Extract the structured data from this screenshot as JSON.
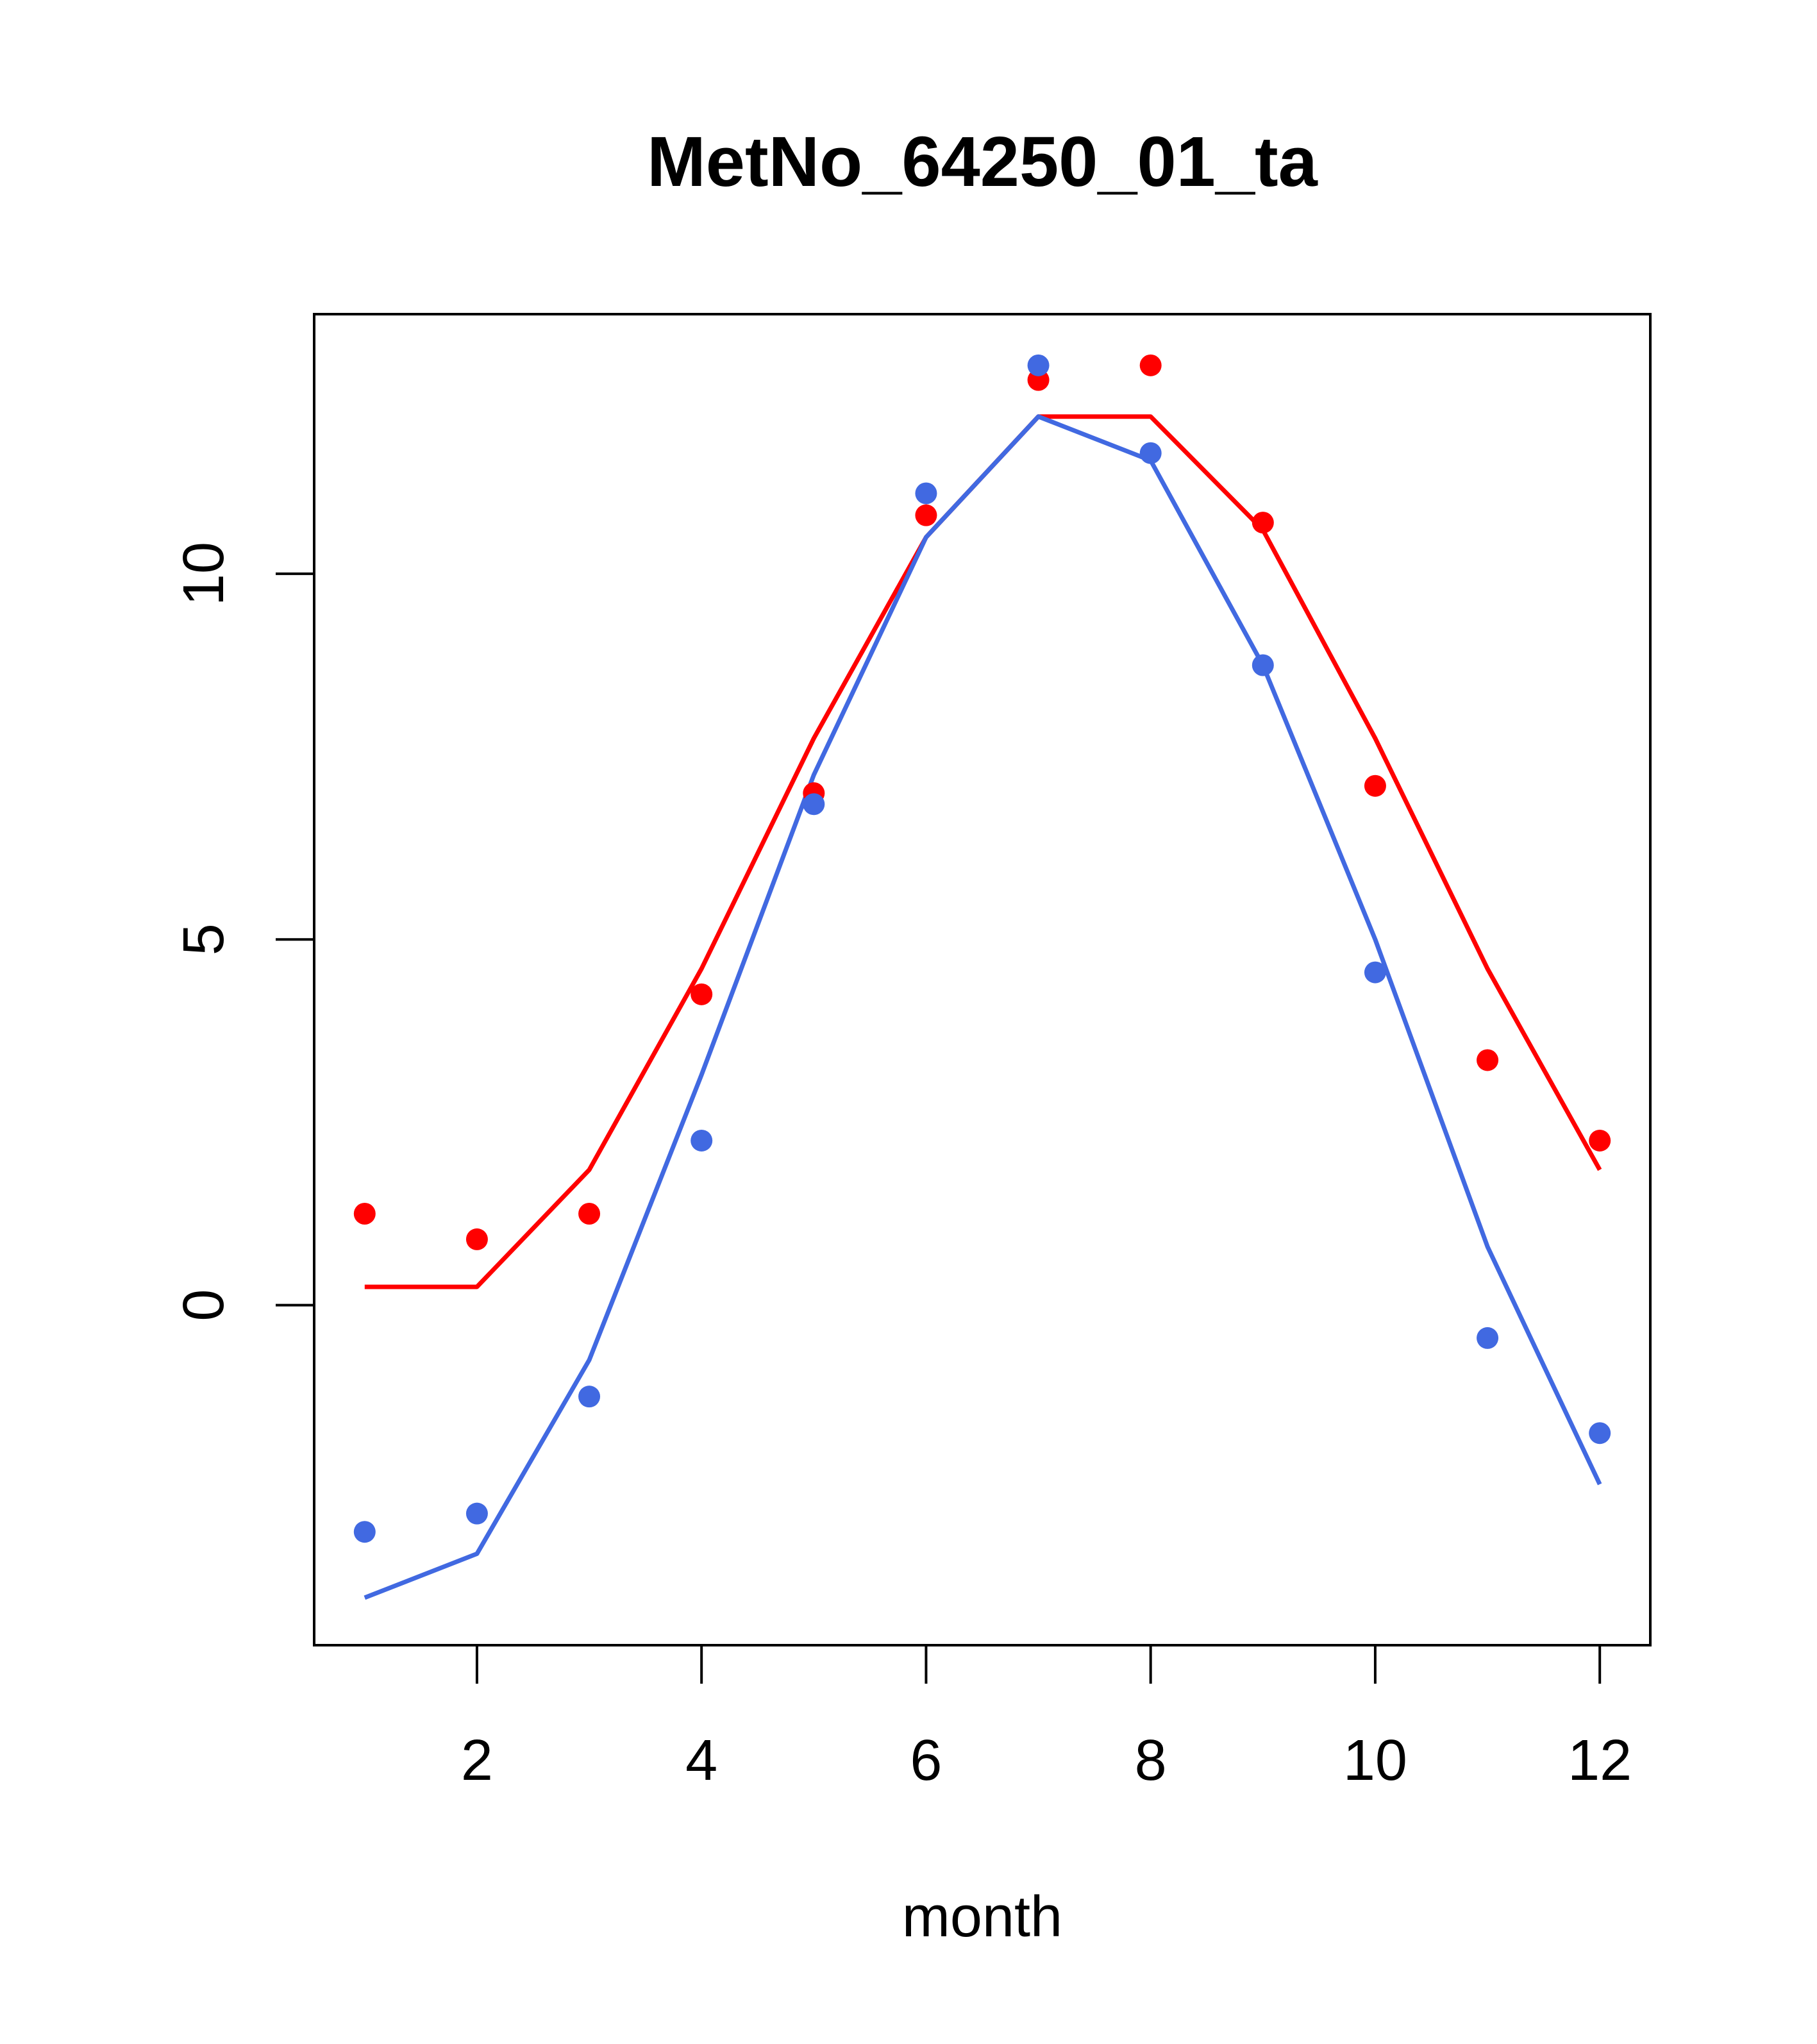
{
  "chart_data": {
    "type": "scatter",
    "title": "MetNo_64250_01_ta",
    "xlabel": "month",
    "ylabel": "",
    "xlim": [
      0.55,
      12.45
    ],
    "ylim": [
      -4.65,
      13.55
    ],
    "xticks": [
      2,
      4,
      6,
      8,
      10,
      12
    ],
    "yticks": [
      0,
      5,
      10
    ],
    "grid": false,
    "legend": "none",
    "series": [
      {
        "color": "#FF0000",
        "points_x": [
          1,
          2,
          3,
          4,
          5,
          6,
          7,
          8,
          9,
          10,
          11,
          12
        ],
        "points_y": [
          1.25,
          0.9,
          1.25,
          4.25,
          7.0,
          10.8,
          12.65,
          12.85,
          10.7,
          7.1,
          3.35,
          2.25
        ],
        "line_x": [
          1,
          2,
          3,
          4,
          5,
          6,
          7,
          8,
          9,
          10,
          11,
          12
        ],
        "line_y": [
          0.25,
          0.25,
          1.85,
          4.6,
          7.75,
          10.5,
          12.15,
          12.15,
          10.6,
          7.75,
          4.6,
          1.85
        ]
      },
      {
        "color": "#4169E1",
        "points_x": [
          1,
          2,
          3,
          4,
          5,
          6,
          7,
          8,
          9,
          10,
          11,
          12
        ],
        "points_y": [
          -3.1,
          -2.85,
          -1.25,
          2.25,
          6.85,
          11.1,
          12.85,
          11.65,
          8.75,
          4.55,
          -0.45,
          -1.75
        ],
        "line_x": [
          1,
          2,
          3,
          4,
          5,
          6,
          7,
          8,
          9,
          10,
          11,
          12
        ],
        "line_y": [
          -4.0,
          -3.4,
          -0.75,
          3.15,
          7.25,
          10.5,
          12.15,
          11.55,
          8.75,
          5.0,
          0.8,
          -2.45
        ]
      }
    ]
  }
}
